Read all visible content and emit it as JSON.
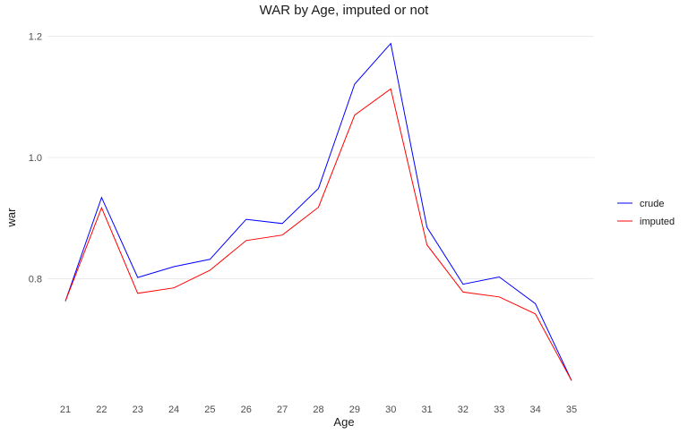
{
  "chart_data": {
    "type": "line",
    "title": "WAR by Age, imputed or not",
    "xlabel": "Age",
    "ylabel": "war",
    "x": [
      21,
      22,
      23,
      24,
      25,
      26,
      27,
      28,
      29,
      30,
      31,
      32,
      33,
      34,
      35
    ],
    "series": [
      {
        "name": "crude",
        "color": "#0000ff",
        "values": [
          0.763,
          0.934,
          0.802,
          0.82,
          0.832,
          0.898,
          0.891,
          0.949,
          1.121,
          1.188,
          0.885,
          0.791,
          0.803,
          0.759,
          0.632
        ]
      },
      {
        "name": "imputed",
        "color": "#ff0000",
        "values": [
          0.763,
          0.917,
          0.776,
          0.785,
          0.814,
          0.863,
          0.872,
          0.918,
          1.07,
          1.113,
          0.856,
          0.778,
          0.77,
          0.742,
          0.632
        ]
      }
    ],
    "yticks": [
      0.8,
      1.0,
      1.2
    ],
    "ytick_labels": [
      "0.8",
      "1.0",
      "1.2"
    ],
    "xticks": [
      21,
      22,
      23,
      24,
      25,
      26,
      27,
      28,
      29,
      30,
      31,
      32,
      33,
      34,
      35
    ],
    "xtick_labels": [
      "21",
      "22",
      "23",
      "24",
      "25",
      "26",
      "27",
      "28",
      "29",
      "30",
      "31",
      "32",
      "33",
      "34",
      "35"
    ],
    "ylim": [
      0.61,
      1.21
    ],
    "xlim": [
      20.5,
      35.6
    ],
    "grid": true,
    "legend_position": "right",
    "colors": {
      "grid": "#ebebeb",
      "background": "#ffffff"
    }
  }
}
